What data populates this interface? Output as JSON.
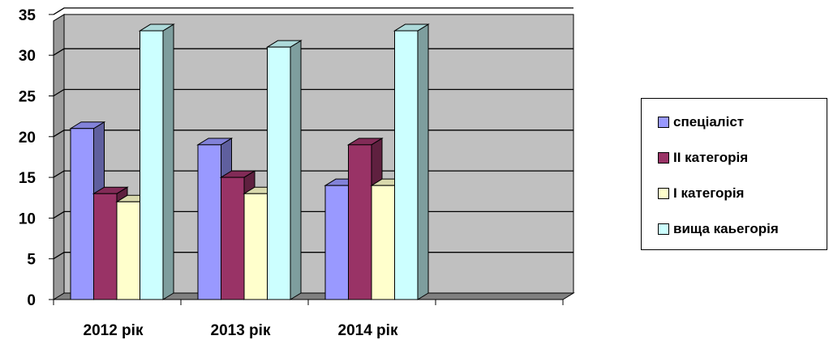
{
  "chart_data": {
    "type": "bar",
    "categories": [
      "2012 рік",
      "2013 рік",
      "2014 рік",
      ""
    ],
    "series": [
      {
        "name": "спеціаліст",
        "values": [
          21,
          19,
          14,
          null
        ],
        "color": "#9999ff"
      },
      {
        "name": "ІІ категорія",
        "values": [
          13,
          15,
          19,
          null
        ],
        "color": "#993366"
      },
      {
        "name": "І категорія",
        "values": [
          12,
          13,
          14,
          null
        ],
        "color": "#ffffcc"
      },
      {
        "name": "вища каьегорія",
        "values": [
          33,
          31,
          33,
          null
        ],
        "color": "#ccffff"
      }
    ],
    "yticks": [
      "0",
      "5",
      "10",
      "15",
      "20",
      "25",
      "30",
      "35"
    ],
    "ylim": [
      0,
      35
    ],
    "grid": true,
    "wall_color": "#c0c0c0",
    "legend_position": "right",
    "title": "",
    "xlabel": "",
    "ylabel": ""
  }
}
